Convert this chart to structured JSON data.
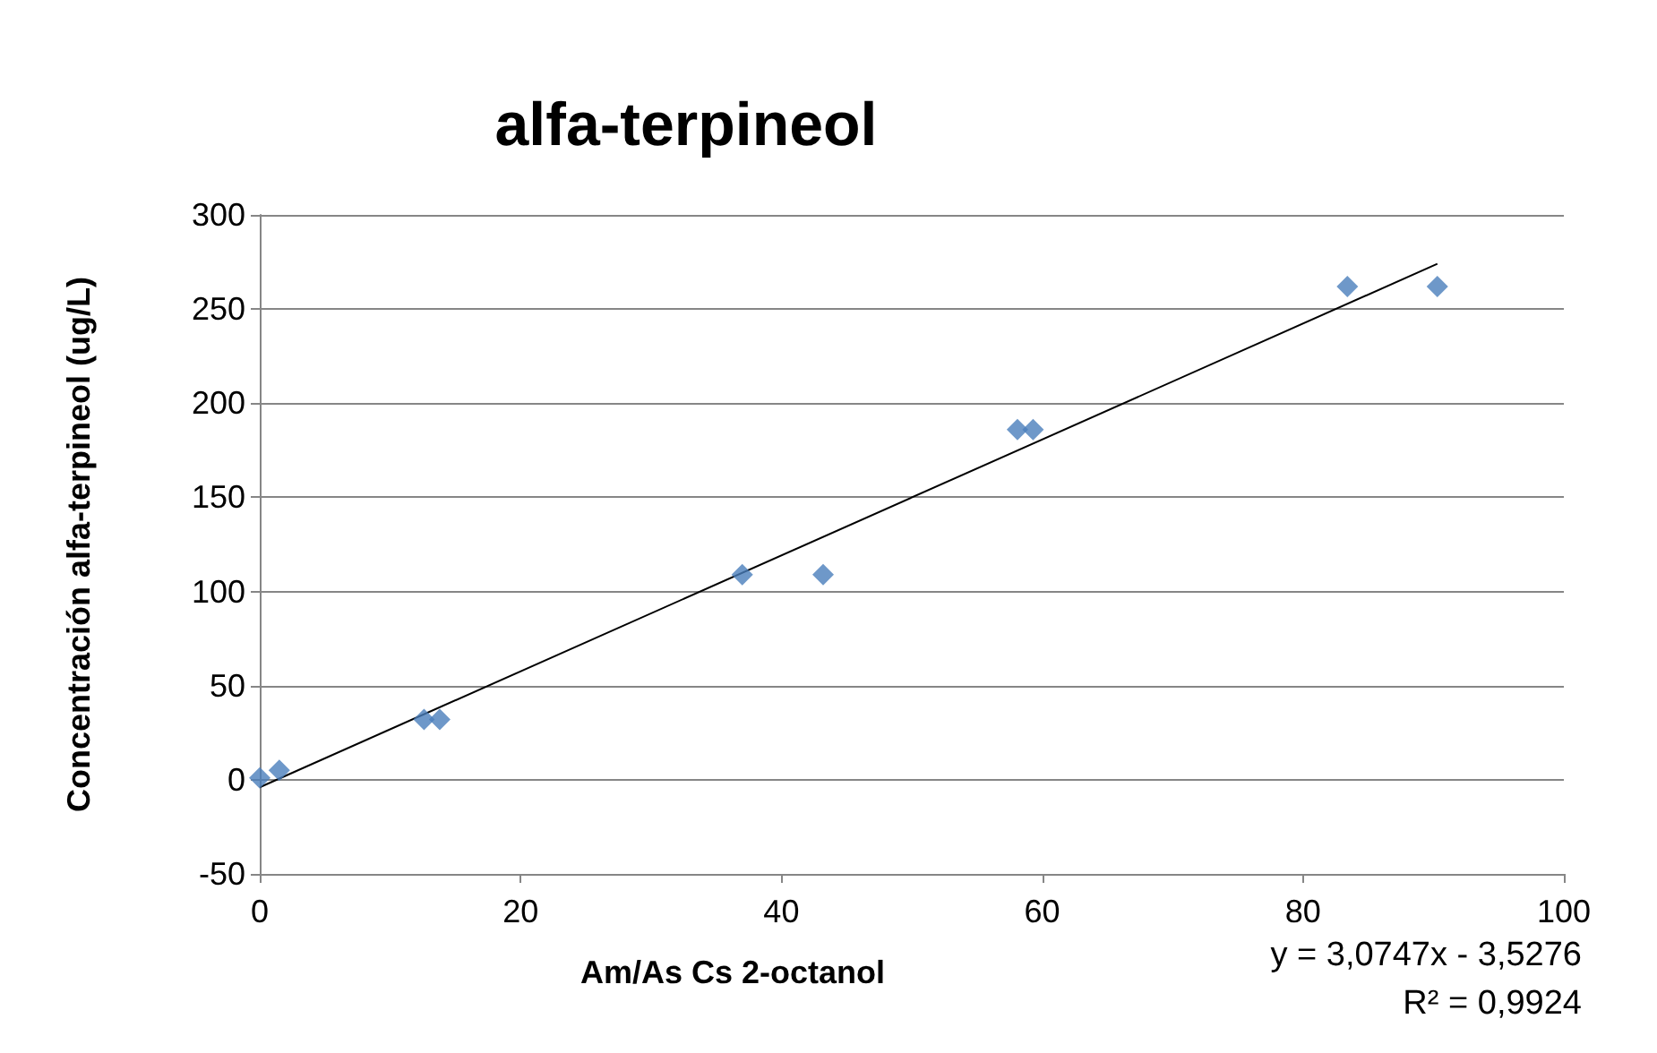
{
  "chart_data": {
    "type": "scatter",
    "title": "alfa-terpineol",
    "xlabel": "Am/As Cs 2-octanol",
    "ylabel": "Concentración alfa-terpineol (ug/L)",
    "annotations": [
      "y = 3,0747x - 3,5276",
      "R² = 0,9924"
    ],
    "xlim": [
      0,
      100
    ],
    "xticks": [
      0,
      20,
      40,
      60,
      80,
      100
    ],
    "ylim": [
      -50,
      300
    ],
    "yticks": [
      -50,
      0,
      50,
      100,
      150,
      200,
      250,
      300
    ],
    "grid": "y",
    "marker": "diamond",
    "series": [
      {
        "type": "scatter",
        "color": "#4a7ebb",
        "x": [
          0,
          1.5,
          12.6,
          13.8,
          37,
          43.2,
          58.1,
          59.3,
          83.4,
          90.3
        ],
        "values": [
          1,
          5,
          32,
          32,
          109,
          109,
          186,
          186,
          262,
          262
        ]
      },
      {
        "type": "line",
        "color": "#000000",
        "x": [
          0,
          90.3
        ],
        "values": [
          -4,
          274
        ],
        "marker": "none",
        "line_style": "solid"
      }
    ]
  }
}
